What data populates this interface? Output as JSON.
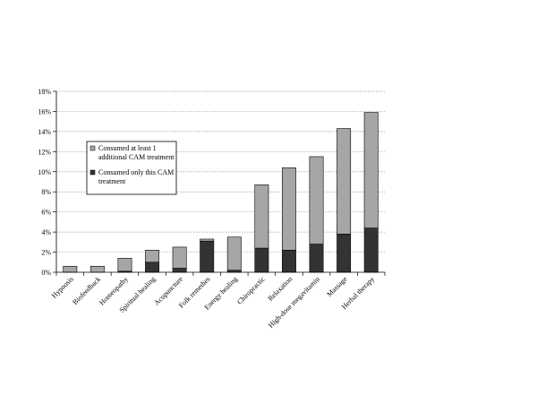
{
  "chart_data": {
    "type": "bar",
    "stacked": true,
    "categories": [
      "Hypnosis",
      "Biofeedback",
      "Homeopathy",
      "Spiritual healing",
      "Acupuncture",
      "Folk remedies",
      "Energy healing",
      "Chiropractic",
      "Relaxation",
      "High-dose megavitamin",
      "Massage",
      "Herbal therapy"
    ],
    "series": [
      {
        "name": "Consumed only this CAM treatment",
        "color": "#333333",
        "values": [
          0.0,
          0.0,
          0.1,
          1.0,
          0.4,
          3.1,
          0.2,
          2.4,
          2.2,
          2.8,
          3.8,
          4.4
        ]
      },
      {
        "name": "Consumed at least 1 additional CAM treatment",
        "color": "#a6a6a6",
        "values": [
          0.6,
          0.6,
          1.3,
          1.2,
          2.1,
          0.2,
          3.3,
          6.3,
          8.2,
          8.7,
          10.5,
          11.5
        ]
      }
    ],
    "ylim": [
      0,
      18
    ],
    "yticks": [
      0,
      2,
      4,
      6,
      8,
      10,
      12,
      14,
      16,
      18
    ],
    "ytick_labels": [
      "0%",
      "2%",
      "4%",
      "6%",
      "8%",
      "10%",
      "12%",
      "14%",
      "16%",
      "18%"
    ],
    "grid": true,
    "legend": {
      "placement": "left-middle",
      "entries": [
        {
          "label_lines": [
            "Consumed at least 1",
            "additional CAM treatment"
          ],
          "series": 1
        },
        {
          "label_lines": [
            "Consumed only this CAM",
            "treatment"
          ],
          "series": 0
        }
      ]
    },
    "title": "",
    "xlabel": "",
    "ylabel": ""
  }
}
